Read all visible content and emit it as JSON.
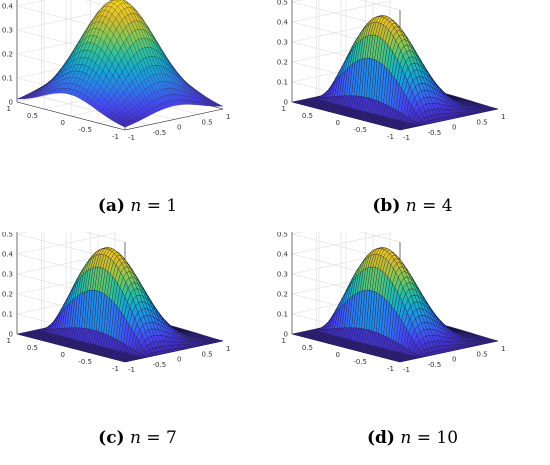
{
  "chart_data": [
    {
      "type": "surface",
      "caption": {
        "label": "(a)",
        "n_text": "n",
        "eq_text": " = 1"
      },
      "n": 1,
      "peak_value": 0.44,
      "zlim": [
        0,
        0.5
      ],
      "z_ticks": [
        "0",
        "0.1",
        "0.2",
        "0.3",
        "0.4",
        "0.5"
      ],
      "x_ticks": [
        "-1",
        "-0.5",
        "0",
        "0.5",
        "1"
      ],
      "y_ticks": [
        "1",
        "0.5",
        "0",
        "-0.5",
        "-1"
      ],
      "xlim": [
        -1,
        1
      ],
      "ylim": [
        -1,
        1
      ],
      "grid": true,
      "colormap": [
        "#3e26a8",
        "#4743f8",
        "#2d7af0",
        "#16a6d6",
        "#2cc19b",
        "#86c852",
        "#d7bb2e",
        "#f9d723"
      ]
    },
    {
      "type": "surface",
      "caption": {
        "label": "(b)",
        "n_text": "n",
        "eq_text": " = 4"
      },
      "n": 4,
      "peak_value": 0.48,
      "zlim": [
        0,
        0.6
      ],
      "z_ticks": [
        "0",
        "0.1",
        "0.2",
        "0.3",
        "0.4",
        "0.5",
        "0.6"
      ],
      "x_ticks": [
        "-1",
        "-0.5",
        "0",
        "0.5",
        "1"
      ],
      "y_ticks": [
        "1",
        "0.5",
        "0",
        "-0.5",
        "-1"
      ],
      "xlim": [
        -1,
        1
      ],
      "ylim": [
        -1,
        1
      ],
      "grid": true,
      "colormap": [
        "#3e26a8",
        "#4743f8",
        "#2d7af0",
        "#16a6d6",
        "#2cc19b",
        "#86c852",
        "#d7bb2e",
        "#f9d723"
      ]
    },
    {
      "type": "surface",
      "caption": {
        "label": "(c)",
        "n_text": "n",
        "eq_text": " = 7"
      },
      "n": 7,
      "peak_value": 0.48,
      "zlim": [
        0,
        0.6
      ],
      "z_ticks": [
        "0",
        "0.1",
        "0.2",
        "0.3",
        "0.4",
        "0.5",
        "0.6"
      ],
      "x_ticks": [
        "-1",
        "-0.5",
        "0",
        "0.5",
        "1"
      ],
      "y_ticks": [
        "1",
        "0.5",
        "0",
        "-0.5",
        "-1"
      ],
      "xlim": [
        -1,
        1
      ],
      "ylim": [
        -1,
        1
      ],
      "grid": true,
      "colormap": [
        "#3e26a8",
        "#4743f8",
        "#2d7af0",
        "#16a6d6",
        "#2cc19b",
        "#86c852",
        "#d7bb2e",
        "#f9d723"
      ]
    },
    {
      "type": "surface",
      "caption": {
        "label": "(d)",
        "n_text": "n",
        "eq_text": " = 10"
      },
      "n": 10,
      "peak_value": 0.48,
      "zlim": [
        0,
        0.6
      ],
      "z_ticks": [
        "0",
        "0.1",
        "0.2",
        "0.3",
        "0.4",
        "0.5",
        "0.6"
      ],
      "x_ticks": [
        "-1",
        "-0.5",
        "0",
        "0.5",
        "1"
      ],
      "y_ticks": [
        "1",
        "0.5",
        "0",
        "-0.5",
        "-1"
      ],
      "xlim": [
        -1,
        1
      ],
      "ylim": [
        -1,
        1
      ],
      "grid": true,
      "colormap": [
        "#3e26a8",
        "#4743f8",
        "#2d7af0",
        "#16a6d6",
        "#2cc19b",
        "#86c852",
        "#d7bb2e",
        "#f9d723"
      ]
    }
  ]
}
